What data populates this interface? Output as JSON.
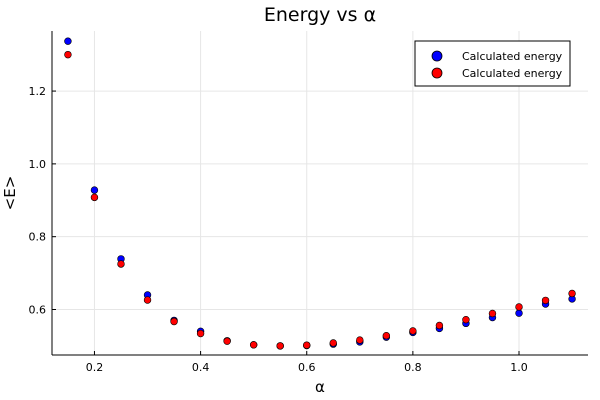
{
  "chart_data": {
    "type": "scatter",
    "title": "Energy vs α",
    "xlabel": "α",
    "ylabel": "<E>",
    "xlim": [
      0.12,
      1.13
    ],
    "ylim": [
      0.475,
      1.365
    ],
    "xticks": [
      0.2,
      0.4,
      0.6,
      0.8,
      1.0
    ],
    "xtick_labels": [
      "0.2",
      "0.4",
      "0.6",
      "0.8",
      "1.0"
    ],
    "yticks": [
      0.6,
      0.8,
      1.0,
      1.2
    ],
    "ytick_labels": [
      "0.6",
      "0.8",
      "1.0",
      "1.2"
    ],
    "grid": true,
    "legend_position": "top-right",
    "series": [
      {
        "name": "Calculated energy",
        "color": "#0000ff",
        "x": [
          0.15,
          0.2,
          0.25,
          0.3,
          0.35,
          0.4,
          0.45,
          0.5,
          0.55,
          0.6,
          0.65,
          0.7,
          0.75,
          0.8,
          0.85,
          0.9,
          0.95,
          1.0,
          1.05,
          1.1
        ],
        "y": [
          1.337,
          0.928,
          0.739,
          0.64,
          0.57,
          0.54,
          0.514,
          0.503,
          0.5,
          0.501,
          0.505,
          0.511,
          0.524,
          0.537,
          0.548,
          0.562,
          0.578,
          0.59,
          0.615,
          0.629
        ]
      },
      {
        "name": "Calculated energy",
        "color": "#ff0000",
        "x": [
          0.15,
          0.2,
          0.25,
          0.3,
          0.35,
          0.4,
          0.45,
          0.5,
          0.55,
          0.6,
          0.65,
          0.7,
          0.75,
          0.8,
          0.85,
          0.9,
          0.95,
          1.0,
          1.05,
          1.1
        ],
        "y": [
          1.3,
          0.908,
          0.725,
          0.626,
          0.567,
          0.534,
          0.513,
          0.503,
          0.5,
          0.502,
          0.508,
          0.516,
          0.528,
          0.541,
          0.556,
          0.572,
          0.589,
          0.607,
          0.625,
          0.644
        ]
      }
    ]
  }
}
